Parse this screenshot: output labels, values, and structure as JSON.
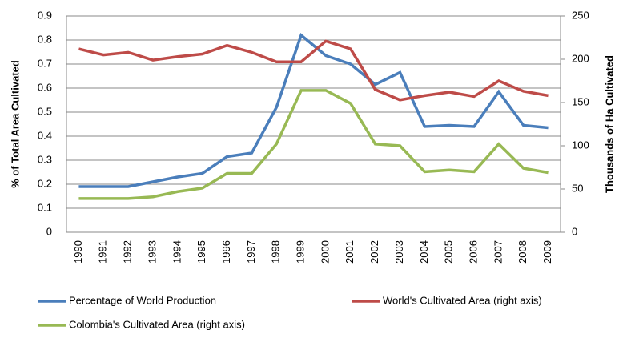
{
  "chart_data": {
    "type": "line",
    "categories": [
      "1990",
      "1991",
      "1992",
      "1993",
      "1994",
      "1995",
      "1996",
      "1997",
      "1998",
      "1999",
      "2000",
      "2001",
      "2002",
      "2003",
      "2004",
      "2005",
      "2006",
      "2007",
      "2008",
      "2009"
    ],
    "y_label": "% of Total Area Cultivated",
    "y2_label": "Thousands of Ha Cultivated",
    "ylim": [
      0,
      0.9
    ],
    "yticks": [
      0,
      0.1,
      0.2,
      0.3,
      0.4,
      0.5,
      0.6,
      0.7,
      0.8,
      0.9
    ],
    "y2lim": [
      0,
      250
    ],
    "y2ticks": [
      0,
      50,
      100,
      150,
      200,
      250
    ],
    "grid": true,
    "series": [
      {
        "name": "Percentage of World Production",
        "color": "#4a7ebb",
        "values": [
          0.19,
          0.19,
          0.19,
          0.21,
          0.23,
          0.245,
          0.315,
          0.33,
          0.52,
          0.82,
          0.735,
          0.7,
          0.615,
          0.665,
          0.44,
          0.445,
          0.44,
          0.585,
          0.445,
          0.435
        ]
      },
      {
        "name": "World's Cultivated Area (right axis)",
        "color": "#be4b48",
        "axis": "y2",
        "values": [
          212,
          205,
          208,
          199,
          203,
          206,
          216,
          208,
          197,
          197,
          221,
          212,
          165,
          153,
          158,
          162,
          157,
          175,
          163,
          158
        ]
      },
      {
        "name": "Colombia's Cultivated Area (right axis)",
        "color": "#98b954",
        "axis": "y2",
        "values": [
          39,
          39,
          39,
          41,
          47,
          51,
          68,
          68,
          102,
          164,
          164,
          149,
          102,
          100,
          70,
          72,
          70,
          102,
          74,
          69
        ]
      }
    ]
  }
}
